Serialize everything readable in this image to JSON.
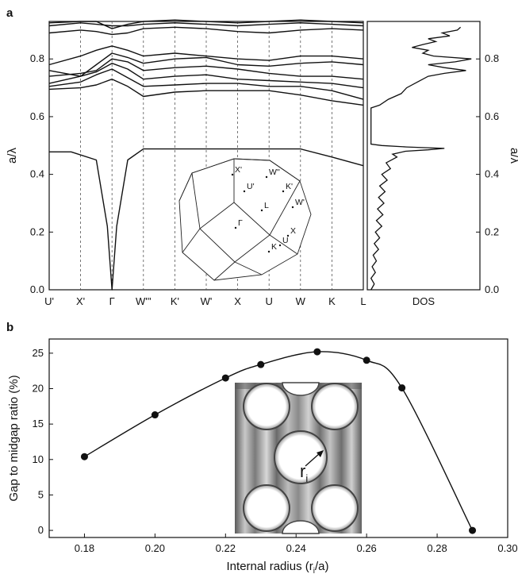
{
  "panel_a_label": "a",
  "panel_b_label": "b",
  "chart_data": [
    {
      "type": "line",
      "panel": "a",
      "ylabel": "a/λ",
      "ylim": [
        0,
        0.93
      ],
      "yticks": [
        "0.0",
        "0.2",
        "0.4",
        "0.6",
        "0.8"
      ],
      "ytick_values": [
        0,
        0.2,
        0.4,
        0.6,
        0.8
      ],
      "k_points": [
        "U'",
        "X'",
        "Γ",
        "W'''",
        "K'",
        "W'",
        "X",
        "U",
        "W",
        "K",
        "L"
      ],
      "k_positions": [
        0,
        1,
        2,
        3,
        4,
        5,
        6,
        7,
        8,
        9,
        10
      ],
      "vertical_guides_dashed": true,
      "series": [
        {
          "x": [
            0,
            0.7,
            1.5,
            1.85,
            2,
            2.15,
            2.5,
            3,
            4,
            5,
            6,
            7,
            8,
            9,
            10
          ],
          "values": [
            0.478,
            0.478,
            0.45,
            0.22,
            0,
            0.22,
            0.45,
            0.488,
            0.488,
            0.488,
            0.488,
            0.488,
            0.488,
            0.46,
            0.43
          ]
        },
        {
          "x": [
            0,
            1,
            1.5,
            2,
            2.5,
            3,
            4,
            5,
            6,
            7,
            8,
            9,
            10
          ],
          "values": [
            0.695,
            0.7,
            0.71,
            0.73,
            0.705,
            0.67,
            0.685,
            0.69,
            0.69,
            0.69,
            0.675,
            0.655,
            0.64
          ]
        },
        {
          "x": [
            0,
            1,
            1.5,
            2,
            2.5,
            3,
            4,
            5,
            6,
            7,
            8,
            9,
            10
          ],
          "values": [
            0.705,
            0.72,
            0.745,
            0.765,
            0.735,
            0.705,
            0.71,
            0.715,
            0.715,
            0.705,
            0.705,
            0.69,
            0.66
          ]
        },
        {
          "x": [
            0,
            1,
            1.5,
            2,
            2.5,
            3,
            4,
            5,
            6,
            7,
            8,
            9,
            10
          ],
          "values": [
            0.715,
            0.74,
            0.755,
            0.785,
            0.765,
            0.73,
            0.74,
            0.745,
            0.73,
            0.725,
            0.72,
            0.715,
            0.7
          ]
        },
        {
          "x": [
            0,
            1,
            1.5,
            2,
            2.5,
            3,
            4,
            5,
            6,
            7,
            8,
            9,
            10
          ],
          "values": [
            0.74,
            0.75,
            0.76,
            0.8,
            0.79,
            0.76,
            0.77,
            0.775,
            0.765,
            0.75,
            0.74,
            0.74,
            0.73
          ]
        },
        {
          "x": [
            0,
            1,
            1.5,
            2,
            2.5,
            3,
            4,
            5,
            6,
            7,
            8,
            9,
            10
          ],
          "values": [
            0.76,
            0.74,
            0.78,
            0.82,
            0.805,
            0.785,
            0.8,
            0.805,
            0.78,
            0.775,
            0.785,
            0.79,
            0.78
          ]
        },
        {
          "x": [
            0,
            1,
            1.5,
            2,
            2.5,
            3,
            4,
            5,
            6,
            7,
            8,
            9,
            10
          ],
          "values": [
            0.78,
            0.81,
            0.83,
            0.845,
            0.83,
            0.81,
            0.82,
            0.81,
            0.8,
            0.795,
            0.81,
            0.81,
            0.8
          ]
        },
        {
          "x": [
            0,
            1,
            1.5,
            2,
            2.5,
            3,
            4,
            5,
            6,
            7,
            8,
            9,
            10
          ],
          "values": [
            0.89,
            0.9,
            0.895,
            0.885,
            0.89,
            0.905,
            0.91,
            0.905,
            0.895,
            0.89,
            0.9,
            0.905,
            0.9
          ]
        },
        {
          "x": [
            0,
            1,
            1.5,
            2,
            2.5,
            3,
            4,
            5,
            6,
            7,
            8,
            9,
            10
          ],
          "values": [
            0.915,
            0.925,
            0.92,
            0.915,
            0.915,
            0.92,
            0.925,
            0.92,
            0.915,
            0.92,
            0.925,
            0.92,
            0.915
          ]
        },
        {
          "x": [
            0,
            1,
            1.5,
            2,
            2.5,
            3,
            4,
            5,
            6,
            7,
            8,
            9,
            10
          ],
          "values": [
            0.925,
            0.93,
            0.93,
            0.905,
            0.92,
            0.93,
            0.935,
            0.93,
            0.925,
            0.93,
            0.935,
            0.93,
            0.925
          ]
        }
      ],
      "inset": {
        "labels": [
          "X'",
          "W''",
          "U'",
          "K'",
          "L",
          "W'",
          "Γ",
          "U",
          "X",
          "K"
        ]
      }
    },
    {
      "type": "line",
      "panel": "a-dos",
      "xlabel": "DOS",
      "ylabel": "a/λ",
      "ylim": [
        0,
        0.93
      ],
      "yticks": [
        "0.0",
        "0.2",
        "0.4",
        "0.6",
        "0.8"
      ],
      "ytick_values": [
        0,
        0.2,
        0.4,
        0.6,
        0.8
      ],
      "dos_profile": [
        [
          0.0,
          0.02
        ],
        [
          0.02,
          0.05
        ],
        [
          0.04,
          0.02
        ],
        [
          0.06,
          0.06
        ],
        [
          0.08,
          0.03
        ],
        [
          0.1,
          0.07
        ],
        [
          0.12,
          0.04
        ],
        [
          0.14,
          0.09
        ],
        [
          0.16,
          0.05
        ],
        [
          0.18,
          0.1
        ],
        [
          0.2,
          0.06
        ],
        [
          0.22,
          0.12
        ],
        [
          0.24,
          0.07
        ],
        [
          0.26,
          0.13
        ],
        [
          0.28,
          0.08
        ],
        [
          0.3,
          0.14
        ],
        [
          0.32,
          0.09
        ],
        [
          0.34,
          0.15
        ],
        [
          0.36,
          0.1
        ],
        [
          0.38,
          0.17
        ],
        [
          0.4,
          0.12
        ],
        [
          0.42,
          0.2
        ],
        [
          0.44,
          0.16
        ],
        [
          0.46,
          0.26
        ],
        [
          0.47,
          0.22
        ],
        [
          0.48,
          0.34
        ],
        [
          0.485,
          0.55
        ],
        [
          0.49,
          0.7
        ],
        [
          0.495,
          0.35
        ],
        [
          0.5,
          0.12
        ],
        [
          0.505,
          0.02
        ],
        [
          0.52,
          0.02
        ],
        [
          0.56,
          0.02
        ],
        [
          0.6,
          0.02
        ],
        [
          0.63,
          0.02
        ],
        [
          0.64,
          0.1
        ],
        [
          0.66,
          0.18
        ],
        [
          0.68,
          0.3
        ],
        [
          0.7,
          0.35
        ],
        [
          0.72,
          0.45
        ],
        [
          0.74,
          0.55
        ],
        [
          0.75,
          0.7
        ],
        [
          0.76,
          0.9
        ],
        [
          0.77,
          0.7
        ],
        [
          0.78,
          0.55
        ],
        [
          0.79,
          0.8
        ],
        [
          0.8,
          0.95
        ],
        [
          0.81,
          0.6
        ],
        [
          0.82,
          0.5
        ],
        [
          0.83,
          0.55
        ],
        [
          0.84,
          0.4
        ],
        [
          0.85,
          0.5
        ],
        [
          0.86,
          0.62
        ],
        [
          0.87,
          0.55
        ],
        [
          0.88,
          0.75
        ],
        [
          0.89,
          0.68
        ],
        [
          0.9,
          0.82
        ],
        [
          0.91,
          0.85
        ]
      ]
    },
    {
      "type": "line",
      "panel": "b",
      "xlabel": "Internal radius (r",
      "xlabel_sub": "i",
      "xlabel_end": "/a)",
      "ylabel": "Gap to midgap ratio (%)",
      "xlim": [
        0.17,
        0.3
      ],
      "ylim": [
        -1,
        27
      ],
      "xticks": [
        "0.18",
        "0.20",
        "0.22",
        "0.24",
        "0.26",
        "0.28",
        "0.30"
      ],
      "xtick_values": [
        0.18,
        0.2,
        0.22,
        0.24,
        0.26,
        0.28,
        0.3
      ],
      "yticks": [
        "0",
        "5",
        "10",
        "15",
        "20",
        "25"
      ],
      "ytick_values": [
        0,
        5,
        10,
        15,
        20,
        25
      ],
      "x": [
        0.18,
        0.2,
        0.22,
        0.23,
        0.246,
        0.26,
        0.27,
        0.29
      ],
      "values": [
        10.4,
        16.3,
        21.5,
        23.4,
        25.2,
        24.0,
        20.1,
        0.0
      ],
      "inset_label": "r",
      "inset_label_sub": "i"
    }
  ]
}
